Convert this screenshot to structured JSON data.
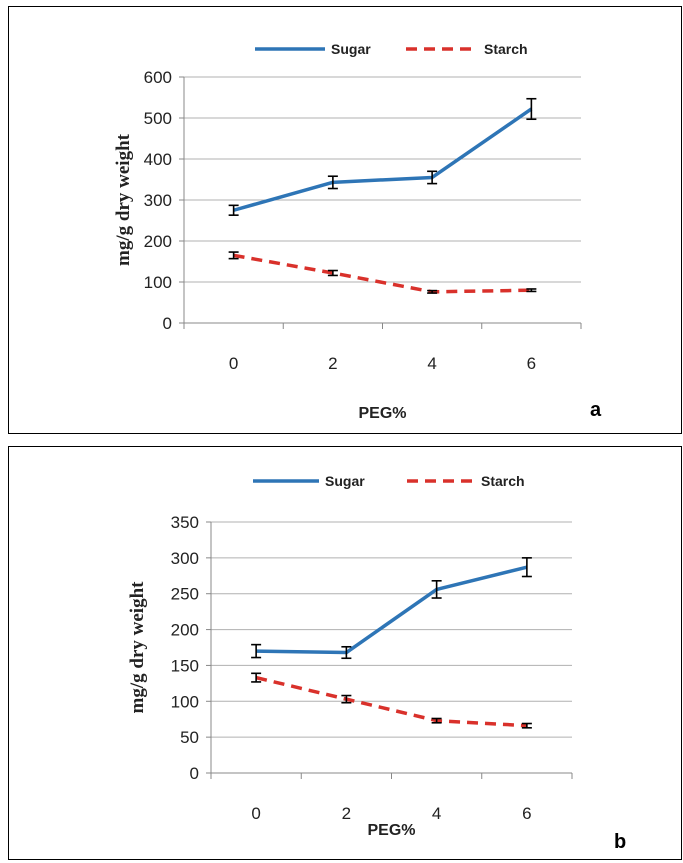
{
  "chart_data": [
    {
      "type": "line",
      "panel_label": "a",
      "xlabel": "PEG%",
      "ylabel": "mg/g dry weight",
      "categories": [
        "0",
        "2",
        "4",
        "6"
      ],
      "ylim": [
        0,
        600
      ],
      "yticks": [
        0,
        100,
        200,
        300,
        400,
        500,
        600
      ],
      "grid": true,
      "legend_position": "top-center",
      "series": [
        {
          "name": "Sugar",
          "style": "solid",
          "color": "#2e75b6",
          "values": [
            275,
            343,
            355,
            522
          ],
          "errors": [
            12,
            15,
            15,
            25
          ]
        },
        {
          "name": "Starch",
          "style": "dashed",
          "color": "#d9312b",
          "values": [
            165,
            122,
            76,
            80
          ],
          "errors": [
            8,
            6,
            3,
            3
          ]
        }
      ]
    },
    {
      "type": "line",
      "panel_label": "b",
      "xlabel": "PEG%",
      "ylabel": "mg/g dry weight",
      "categories": [
        "0",
        "2",
        "4",
        "6"
      ],
      "ylim": [
        0,
        350
      ],
      "yticks": [
        0,
        50,
        100,
        150,
        200,
        250,
        300,
        350
      ],
      "grid": true,
      "legend_position": "top-center",
      "series": [
        {
          "name": "Sugar",
          "style": "solid",
          "color": "#2e75b6",
          "values": [
            170,
            168,
            256,
            287
          ],
          "errors": [
            9,
            8,
            12,
            13
          ]
        },
        {
          "name": "Starch",
          "style": "dashed",
          "color": "#d9312b",
          "values": [
            133,
            103,
            73,
            66
          ],
          "errors": [
            6,
            5,
            3,
            3
          ]
        }
      ]
    }
  ]
}
